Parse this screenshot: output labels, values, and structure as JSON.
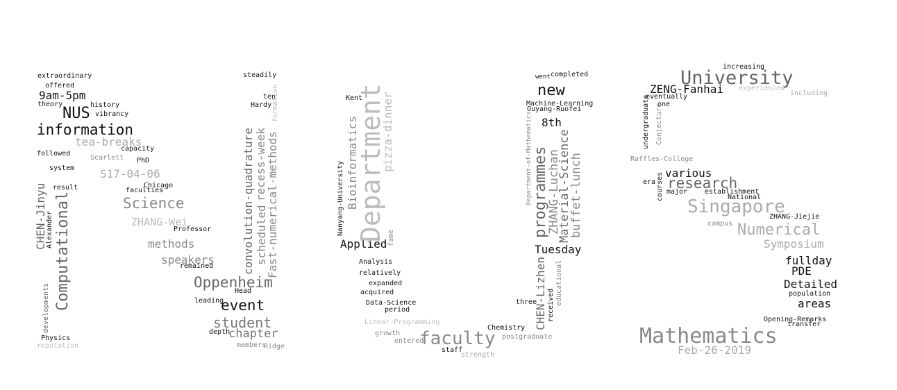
{
  "words": [
    {
      "id": "w0",
      "text": "extraordinary",
      "color": "#111111"
    },
    {
      "id": "w1",
      "text": "offered",
      "color": "#111111"
    },
    {
      "id": "w2",
      "text": "9am-5pm",
      "color": "#111111"
    },
    {
      "id": "w3",
      "text": "theory",
      "color": "#111111"
    },
    {
      "id": "w4",
      "text": "history",
      "color": "#111111"
    },
    {
      "id": "w5",
      "text": "NUS",
      "color": "#111111"
    },
    {
      "id": "w6",
      "text": "vibrancy",
      "color": "#111111"
    },
    {
      "id": "w7",
      "text": "information",
      "color": "#111111"
    },
    {
      "id": "w8",
      "text": "tea-breaks",
      "color": "#aaaaaa"
    },
    {
      "id": "w9",
      "text": "capacity",
      "color": "#111111"
    },
    {
      "id": "w10",
      "text": "followed",
      "color": "#111111"
    },
    {
      "id": "w11",
      "text": "Scarlett",
      "color": "#888888"
    },
    {
      "id": "w12",
      "text": "PhD",
      "color": "#111111"
    },
    {
      "id": "w13",
      "text": "system",
      "color": "#111111"
    },
    {
      "id": "w14",
      "text": "S17-04-06",
      "color": "#aaaaaa"
    },
    {
      "id": "w15",
      "text": "Chicago",
      "color": "#111111"
    },
    {
      "id": "w16",
      "text": "result",
      "color": "#111111"
    },
    {
      "id": "w17",
      "text": "faculties",
      "color": "#111111"
    },
    {
      "id": "w18",
      "text": "Science",
      "color": "#888888"
    },
    {
      "id": "w19",
      "text": "ZHANG-Wei",
      "color": "#bbbbbb"
    },
    {
      "id": "w20",
      "text": "Professor",
      "color": "#111111"
    },
    {
      "id": "w21",
      "text": "methods",
      "color": "#888888"
    },
    {
      "id": "w22",
      "text": "speakers",
      "color": "#888888"
    },
    {
      "id": "w23",
      "text": "remained",
      "color": "#111111"
    },
    {
      "id": "w24",
      "text": "Oppenheim",
      "color": "#666666"
    },
    {
      "id": "w25",
      "text": "Head",
      "color": "#111111"
    },
    {
      "id": "w26",
      "text": "leading",
      "color": "#111111"
    },
    {
      "id": "w27",
      "text": "event",
      "color": "#111111"
    },
    {
      "id": "w28",
      "text": "student",
      "color": "#777777"
    },
    {
      "id": "w29",
      "text": "depth",
      "color": "#111111"
    },
    {
      "id": "w30",
      "text": "chapter",
      "color": "#777777"
    },
    {
      "id": "w31",
      "text": "Physics",
      "color": "#111111"
    },
    {
      "id": "w32",
      "text": "reputation",
      "color": "#bbbbbb"
    },
    {
      "id": "w33",
      "text": "members",
      "color": "#888888"
    },
    {
      "id": "w34",
      "text": "Ridge",
      "color": "#888888"
    },
    {
      "id": "w35",
      "text": "steadily",
      "color": "#111111"
    },
    {
      "id": "w36",
      "text": "ten",
      "color": "#111111"
    },
    {
      "id": "w37",
      "text": "Hardy",
      "color": "#111111"
    },
    {
      "id": "w38",
      "text": "Kent",
      "color": "#111111"
    },
    {
      "id": "w39",
      "text": "Applied",
      "color": "#111111"
    },
    {
      "id": "w40",
      "text": "Analysis",
      "color": "#111111"
    },
    {
      "id": "w41",
      "text": "relatively",
      "color": "#111111"
    },
    {
      "id": "w42",
      "text": "expanded",
      "color": "#111111"
    },
    {
      "id": "w43",
      "text": "acquired",
      "color": "#111111"
    },
    {
      "id": "w44",
      "text": "Data-Science",
      "color": "#111111"
    },
    {
      "id": "w45",
      "text": "period",
      "color": "#111111"
    },
    {
      "id": "w46",
      "text": "Linear-Programming",
      "color": "#bbbbbb"
    },
    {
      "id": "w47",
      "text": "growth",
      "color": "#888888"
    },
    {
      "id": "w48",
      "text": "entered",
      "color": "#888888"
    },
    {
      "id": "w49",
      "text": "faculty",
      "color": "#888888"
    },
    {
      "id": "w50",
      "text": "staff",
      "color": "#111111"
    },
    {
      "id": "w51",
      "text": "strength",
      "color": "#aaaaaa"
    },
    {
      "id": "w52",
      "text": "Chemistry",
      "color": "#111111"
    },
    {
      "id": "w53",
      "text": "postgraduate",
      "color": "#888888"
    },
    {
      "id": "w54",
      "text": "three",
      "color": "#111111"
    },
    {
      "id": "w55",
      "text": "went",
      "color": "#111111"
    },
    {
      "id": "w56",
      "text": "completed",
      "color": "#111111"
    },
    {
      "id": "w57",
      "text": "new",
      "color": "#111111"
    },
    {
      "id": "w58",
      "text": "Machine-Learning",
      "color": "#111111"
    },
    {
      "id": "w59",
      "text": "Ouyang-Ruofei",
      "color": "#111111"
    },
    {
      "id": "w60",
      "text": "8th",
      "color": "#111111"
    },
    {
      "id": "w61",
      "text": "Tuesday",
      "color": "#111111"
    },
    {
      "id": "w62",
      "text": "increasing",
      "color": "#111111"
    },
    {
      "id": "w63",
      "text": "University",
      "color": "#666666"
    },
    {
      "id": "w64",
      "text": "ZENG-Fanhai",
      "color": "#111111"
    },
    {
      "id": "w65",
      "text": "experienced",
      "color": "#bbbbbb"
    },
    {
      "id": "w66",
      "text": "including",
      "color": "#aaaaaa"
    },
    {
      "id": "w67",
      "text": "eventually",
      "color": "#111111"
    },
    {
      "id": "w68",
      "text": "one",
      "color": "#111111"
    },
    {
      "id": "w69",
      "text": "Raffles-College",
      "color": "#888888"
    },
    {
      "id": "w70",
      "text": "various",
      "color": "#111111"
    },
    {
      "id": "w71",
      "text": "era",
      "color": "#111111"
    },
    {
      "id": "w72",
      "text": "research",
      "color": "#666666"
    },
    {
      "id": "w73",
      "text": "major",
      "color": "#111111"
    },
    {
      "id": "w74",
      "text": "establishment",
      "color": "#111111"
    },
    {
      "id": "w75",
      "text": "National",
      "color": "#111111"
    },
    {
      "id": "w76",
      "text": "Singapore",
      "color": "#aaaaaa"
    },
    {
      "id": "w77",
      "text": "ZHANG-Jiejie",
      "color": "#111111"
    },
    {
      "id": "w78",
      "text": "campus",
      "color": "#888888"
    },
    {
      "id": "w79",
      "text": "Numerical",
      "color": "#aaaaaa"
    },
    {
      "id": "w80",
      "text": "Symposium",
      "color": "#aaaaaa"
    },
    {
      "id": "w81",
      "text": "fullday",
      "color": "#111111"
    },
    {
      "id": "w82",
      "text": "PDE",
      "color": "#111111"
    },
    {
      "id": "w83",
      "text": "Detailed",
      "color": "#111111"
    },
    {
      "id": "w84",
      "text": "population",
      "color": "#111111"
    },
    {
      "id": "w85",
      "text": "areas",
      "color": "#111111"
    },
    {
      "id": "w86",
      "text": "Opening-Remarks",
      "color": "#111111"
    },
    {
      "id": "w87",
      "text": "transfer",
      "color": "#111111"
    },
    {
      "id": "w88",
      "text": "Mathematics",
      "color": "#888888"
    },
    {
      "id": "w89",
      "text": "Feb-26-2019",
      "color": "#aaaaaa"
    },
    {
      "id": "w90",
      "text": "CHEN-Jinyu",
      "color": "#666666"
    },
    {
      "id": "w91",
      "text": "Alexander",
      "color": "#111111"
    },
    {
      "id": "w92",
      "text": "Computational",
      "color": "#666666"
    },
    {
      "id": "w93",
      "text": "developments",
      "color": "#666666"
    },
    {
      "id": "w94",
      "text": "convolution-quadrature",
      "color": "#666666"
    },
    {
      "id": "w95",
      "text": "scheduled",
      "color": "#888888"
    },
    {
      "id": "w96",
      "text": "recess-week",
      "color": "#888888"
    },
    {
      "id": "w97",
      "text": "Fast-numerical-methods",
      "color": "#888888"
    },
    {
      "id": "w98",
      "text": "formation",
      "color": "#bbbbbb"
    },
    {
      "id": "w99",
      "text": "Nanyang-University",
      "color": "#111111"
    },
    {
      "id": "w100",
      "text": "Bioinformatics",
      "color": "#888888"
    },
    {
      "id": "w101",
      "text": "Department",
      "color": "#bbbbbb"
    },
    {
      "id": "w102",
      "text": "pizza-dinner",
      "color": "#bbbbbb"
    },
    {
      "id": "w103",
      "text": "fame",
      "color": "#888888"
    },
    {
      "id": "w104",
      "text": "Department-of-Mathematics",
      "color": "#888888"
    },
    {
      "id": "w105",
      "text": "programmes",
      "color": "#666666"
    },
    {
      "id": "w106",
      "text": "ZHANG-Luchan",
      "color": "#888888"
    },
    {
      "id": "w107",
      "text": "Material-Science",
      "color": "#666666"
    },
    {
      "id": "w108",
      "text": "buffet-lunch",
      "color": "#888888"
    },
    {
      "id": "w109",
      "text": "CHEN-Lizhen",
      "color": "#666666"
    },
    {
      "id": "w110",
      "text": "received",
      "color": "#111111"
    },
    {
      "id": "w111",
      "text": "educational",
      "color": "#888888"
    },
    {
      "id": "w112",
      "text": "undergraduate",
      "color": "#111111"
    },
    {
      "id": "w113",
      "text": "Conjecture",
      "color": "#888888"
    },
    {
      "id": "w114",
      "text": "courses",
      "color": "#111111"
    }
  ]
}
